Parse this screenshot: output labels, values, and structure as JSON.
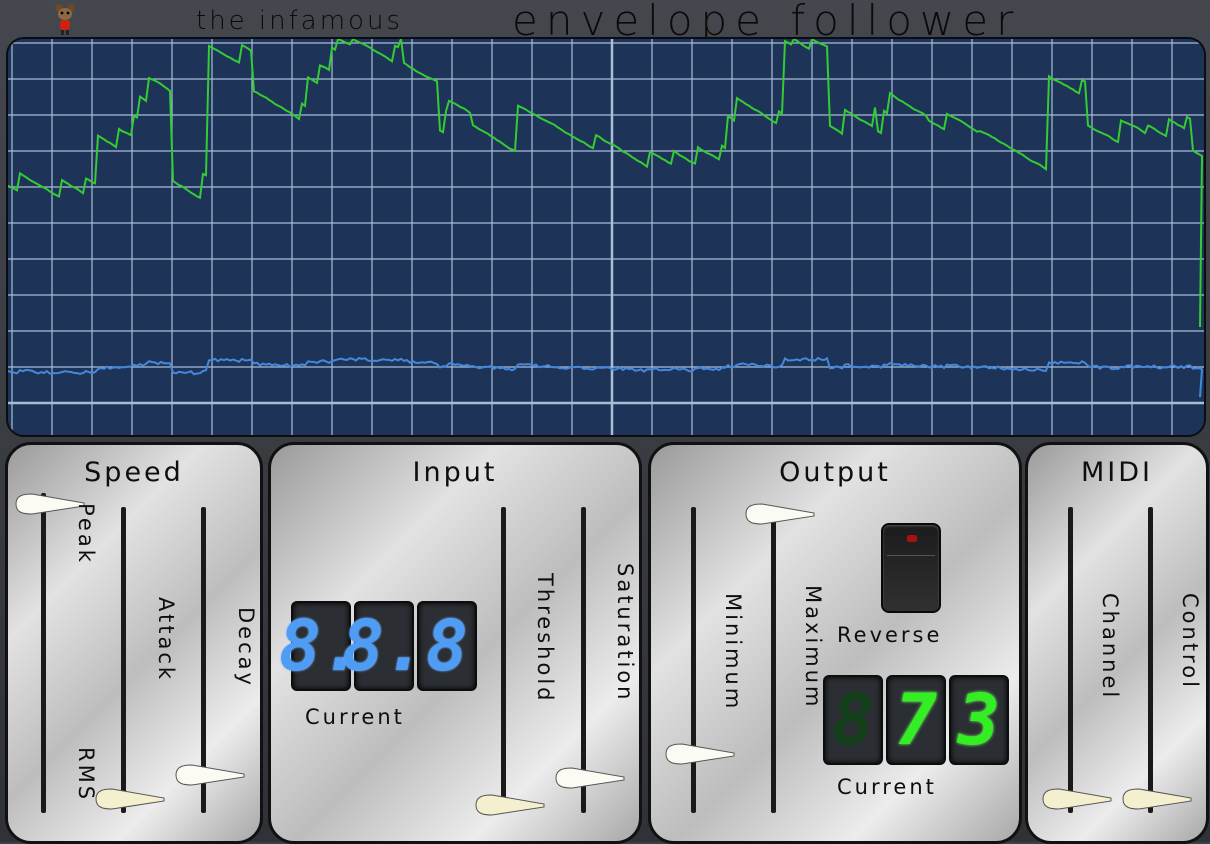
{
  "header": {
    "title_small": "the infamous",
    "title_big": "envelope follower",
    "logo_icon": "mouse-mascot-icon"
  },
  "scope": {
    "background_color": "#1d3358",
    "grid_color": "#a8bdd6",
    "envelope_color": "#33cc33",
    "input_color": "#4488dd"
  },
  "speed": {
    "title": "Speed",
    "peak_label": "Peak",
    "rms_label": "RMS",
    "attack_label": "Attack",
    "decay_label": "Decay",
    "peak_rms_value": 1.0,
    "attack_value": 0.05,
    "decay_value": 0.13
  },
  "input": {
    "title": "Input",
    "current_digits": [
      "8.",
      "8.",
      "8"
    ],
    "current_label": "Current",
    "threshold_label": "Threshold",
    "saturation_label": "Saturation",
    "threshold_value": 0.03,
    "saturation_value": 0.12
  },
  "output": {
    "title": "Output",
    "minimum_label": "Minimum",
    "maximum_label": "Maximum",
    "minimum_value": 0.2,
    "maximum_value": 1.0,
    "reverse_label": "Reverse",
    "current_digits": [
      "8",
      "7",
      "3"
    ],
    "current_label": "Current"
  },
  "midi": {
    "title": "MIDI",
    "channel_label": "Channel",
    "control_label": "Control",
    "channel_value": 0.05,
    "control_value": 0.05
  }
}
